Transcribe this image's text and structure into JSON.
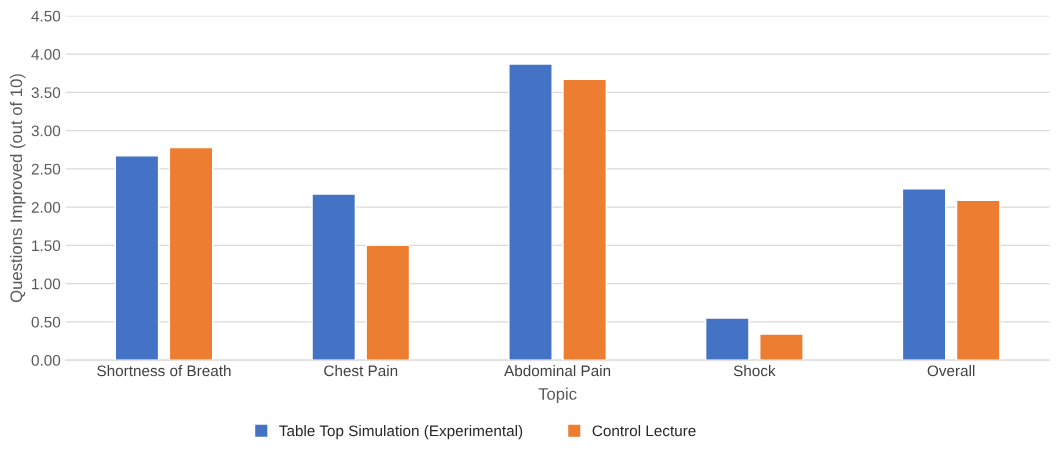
{
  "chart_data": {
    "type": "bar",
    "xlabel": "Topic",
    "ylabel": "Questions Improved (out of 10)",
    "categories": [
      "Shortness of Breath",
      "Chest Pain",
      "Abdominal Pain",
      "Shock",
      "Overall"
    ],
    "series": [
      {
        "name": "Table Top Simulation (Experimental)",
        "color": "#4472c4",
        "values": [
          2.67,
          2.17,
          3.87,
          0.55,
          2.24
        ]
      },
      {
        "name": "Control Lecture",
        "color": "#ed7d31",
        "values": [
          2.78,
          1.5,
          3.67,
          0.34,
          2.09
        ]
      }
    ],
    "ylim": [
      0,
      4.5
    ],
    "yticks": [
      {
        "value": 0,
        "label": "0.00"
      },
      {
        "value": 0.5,
        "label": "0.50"
      },
      {
        "value": 1,
        "label": "1.00"
      },
      {
        "value": 1.5,
        "label": "1.50"
      },
      {
        "value": 2,
        "label": "2.00"
      },
      {
        "value": 2.5,
        "label": "2.50"
      },
      {
        "value": 3,
        "label": "3.00"
      },
      {
        "value": 3.5,
        "label": "3.50"
      },
      {
        "value": 4,
        "label": "4.00"
      },
      {
        "value": 4.5,
        "label": "4.50"
      }
    ],
    "grid": "y",
    "legend": "bottom"
  }
}
